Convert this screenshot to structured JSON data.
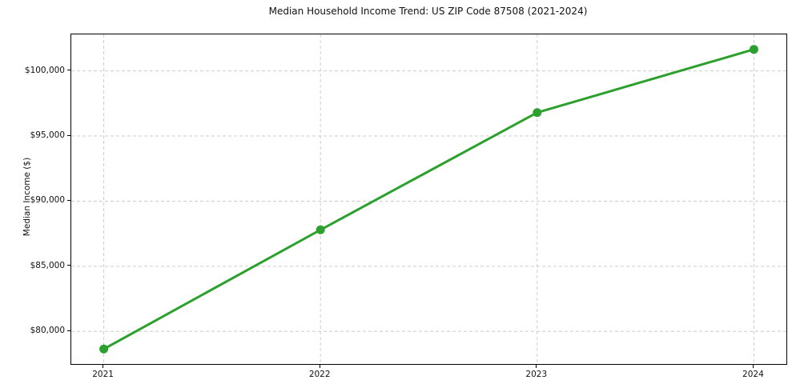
{
  "figure": {
    "title": "Median Household Income Trend: US ZIP Code 87508 (2021-2024)",
    "ylabel": "Median Income ($)",
    "xlabel": ""
  },
  "chart_data": {
    "type": "line",
    "x": [
      2021,
      2022,
      2023,
      2024
    ],
    "x_tick_labels": [
      "2021",
      "2022",
      "2023",
      "2024"
    ],
    "series": [
      {
        "name": "Median Household Income",
        "values": [
          78650,
          87800,
          96800,
          101650
        ]
      }
    ],
    "yticks": [
      80000,
      85000,
      90000,
      95000,
      100000
    ],
    "ytick_labels": [
      "$80,000",
      "$85,000",
      "$90,000",
      "$95,000",
      "$100,000"
    ],
    "xlim": [
      2020.85,
      2024.15
    ],
    "ylim": [
      77500,
      102800
    ],
    "grid": true,
    "grid_style": "dashed",
    "legend": "none",
    "colors": {
      "line": "#2ca02c",
      "marker": "#2ca02c",
      "grid": "#cccccc",
      "spine": "#000000",
      "text": "#111111",
      "background": "#ffffff"
    },
    "marker": "o",
    "line_width": 3,
    "marker_radius": 5.5
  }
}
